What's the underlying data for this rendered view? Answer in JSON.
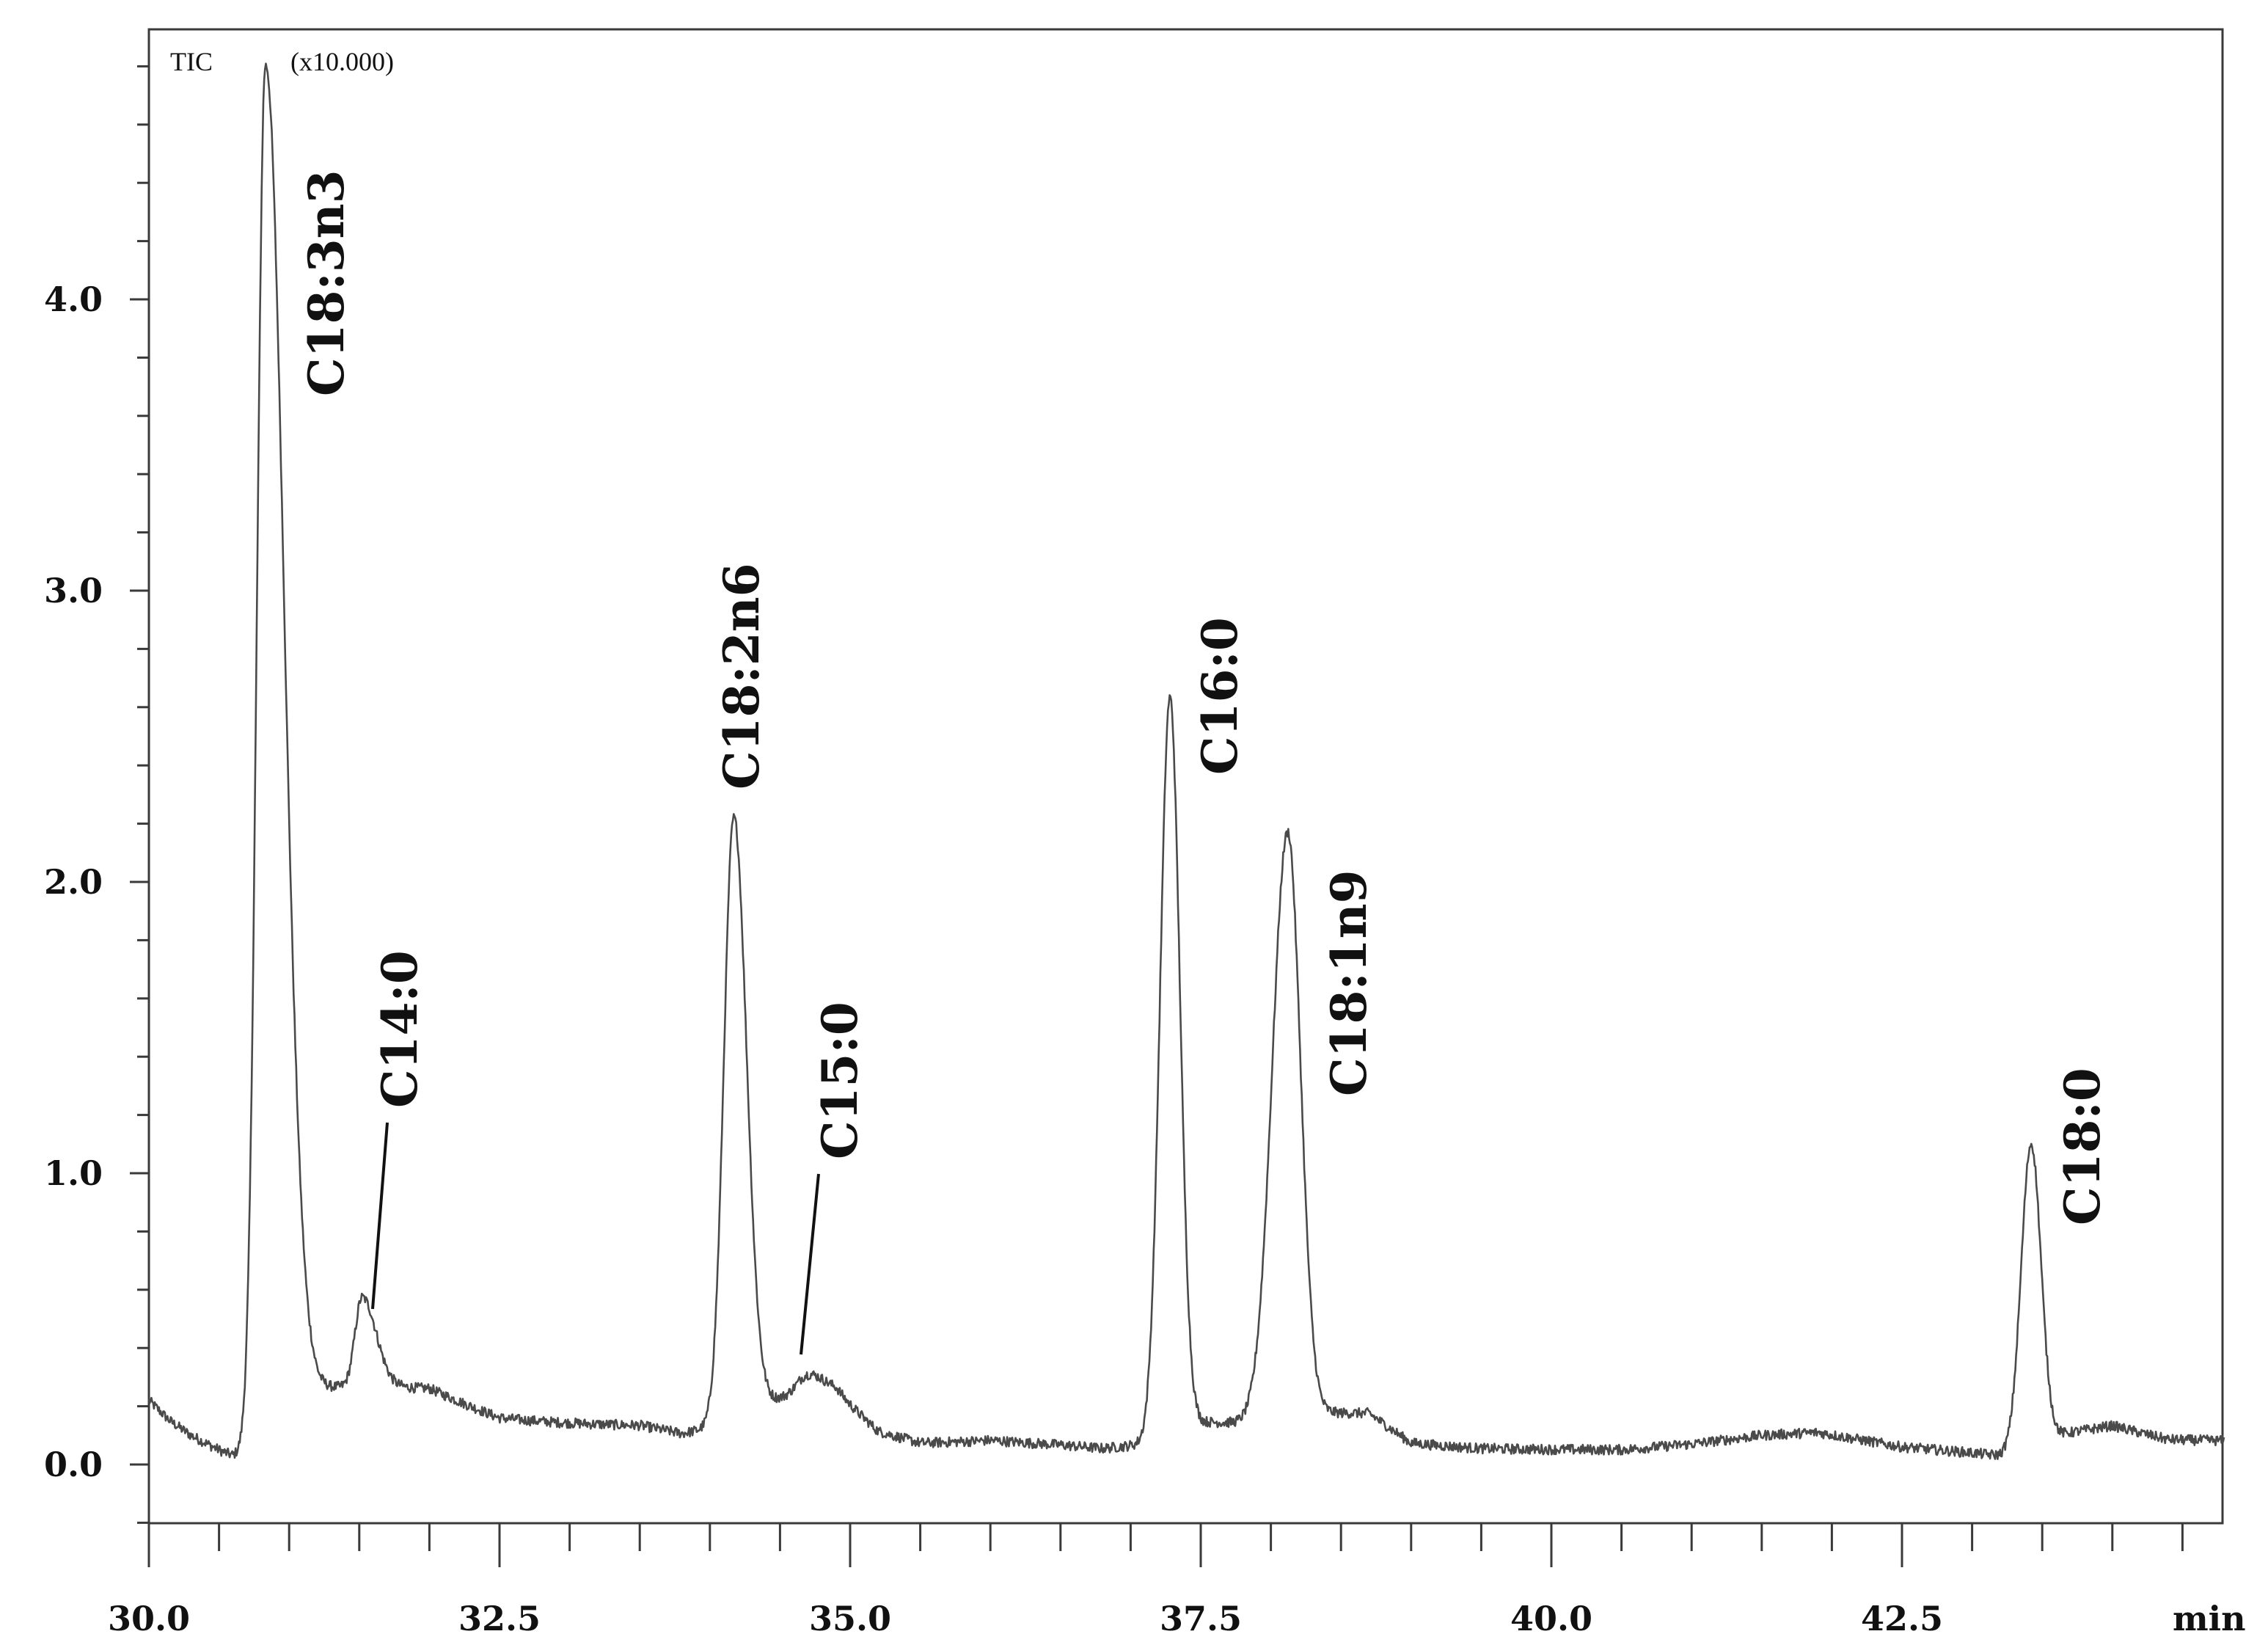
{
  "chart_data": {
    "type": "line",
    "title": "",
    "signal_label": "TIC",
    "y_multiplier_label": "(x10.000)",
    "xlabel": "min",
    "ylabel": "",
    "xlim": [
      30.0,
      44.8
    ],
    "ylim": [
      -0.2,
      4.85
    ],
    "x_ticks": [
      30.0,
      32.5,
      35.0,
      37.5,
      40.0,
      42.5
    ],
    "x_tick_labels": [
      "30.0",
      "32.5",
      "35.0",
      "37.5",
      "40.0",
      "42.5"
    ],
    "y_ticks": [
      0.0,
      1.0,
      2.0,
      3.0,
      4.0
    ],
    "y_tick_labels": [
      "0.0",
      "1.0",
      "2.0",
      "3.0",
      "4.0"
    ],
    "grid": false,
    "baseline": [
      [
        30.0,
        0.22
      ],
      [
        30.15,
        0.15
      ],
      [
        30.3,
        0.1
      ],
      [
        30.5,
        0.05
      ],
      [
        30.6,
        0.03
      ],
      [
        32.0,
        0.14
      ],
      [
        32.5,
        0.08
      ],
      [
        33.0,
        0.09
      ],
      [
        33.5,
        0.1
      ],
      [
        33.8,
        0.08
      ],
      [
        34.9,
        0.2
      ],
      [
        35.2,
        0.08
      ],
      [
        35.5,
        0.05
      ],
      [
        36.0,
        0.07
      ],
      [
        36.5,
        0.06
      ],
      [
        36.8,
        0.05
      ],
      [
        38.7,
        0.15
      ],
      [
        39.0,
        0.06
      ],
      [
        39.5,
        0.05
      ],
      [
        40.0,
        0.05
      ],
      [
        40.5,
        0.05
      ],
      [
        41.0,
        0.07
      ],
      [
        41.5,
        0.1
      ],
      [
        41.9,
        0.11
      ],
      [
        42.5,
        0.06
      ],
      [
        43.0,
        0.04
      ],
      [
        43.2,
        0.03
      ],
      [
        44.0,
        0.12
      ],
      [
        44.4,
        0.08
      ],
      [
        44.8,
        0.08
      ]
    ],
    "peaks": [
      {
        "name": "C18:3n3",
        "rt": 30.83,
        "height": 4.8
      },
      {
        "name": "C14:0",
        "rt": 31.52,
        "height": 0.41
      },
      {
        "name": "C18:2n6",
        "rt": 34.17,
        "height": 2.2
      },
      {
        "name": "C15:0",
        "rt": 34.7,
        "height": 0.25
      },
      {
        "name": "C16:0",
        "rt": 37.28,
        "height": 2.63
      },
      {
        "name": "C18:1n9",
        "rt": 38.12,
        "height": 2.15
      },
      {
        "name": "C18:0",
        "rt": 43.42,
        "height": 1.1
      }
    ],
    "colors": {
      "trace": "#4a4a4a",
      "frame": "#3a3a3a",
      "text": "#111111"
    }
  }
}
